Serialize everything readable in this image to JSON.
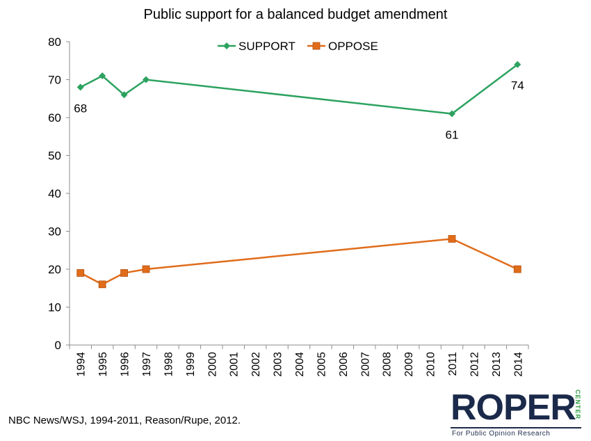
{
  "chart_data": {
    "type": "line",
    "title": "Public support for a balanced budget amendment",
    "xlabel": "",
    "ylabel": "",
    "categories": [
      "1994",
      "1995",
      "1996",
      "1997",
      "1998",
      "1999",
      "2000",
      "2001",
      "2002",
      "2003",
      "2004",
      "2005",
      "2006",
      "2007",
      "2008",
      "2009",
      "2010",
      "2011",
      "2012",
      "2013",
      "2014"
    ],
    "ylim": [
      0,
      80
    ],
    "yticks": [
      0,
      10,
      20,
      30,
      40,
      50,
      60,
      70,
      80
    ],
    "grid": false,
    "legend_position": "top-center",
    "series": [
      {
        "name": "SUPPORT",
        "color": "#2ca25f",
        "marker": "diamond",
        "points": [
          {
            "x": "1994",
            "y": 68
          },
          {
            "x": "1995",
            "y": 71
          },
          {
            "x": "1996",
            "y": 66
          },
          {
            "x": "1997",
            "y": 70
          },
          {
            "x": "2011",
            "y": 61
          },
          {
            "x": "2014",
            "y": 74
          }
        ],
        "data_labels": [
          {
            "x": "1994",
            "text": "68"
          },
          {
            "x": "2011",
            "text": "61"
          },
          {
            "x": "2014",
            "text": "74"
          }
        ]
      },
      {
        "name": "OPPOSE",
        "color": "#e06c1a",
        "marker": "square",
        "points": [
          {
            "x": "1994",
            "y": 19
          },
          {
            "x": "1995",
            "y": 16
          },
          {
            "x": "1996",
            "y": 19
          },
          {
            "x": "1997",
            "y": 20
          },
          {
            "x": "2011",
            "y": 28
          },
          {
            "x": "2014",
            "y": 20
          }
        ],
        "data_labels": []
      }
    ]
  },
  "source": "NBC News/WSJ, 1994-2011, Reason/Rupe,  2012.",
  "logo": {
    "word": "ROPER",
    "side": "CENTER",
    "tagline": "For Public Opinion Research"
  }
}
